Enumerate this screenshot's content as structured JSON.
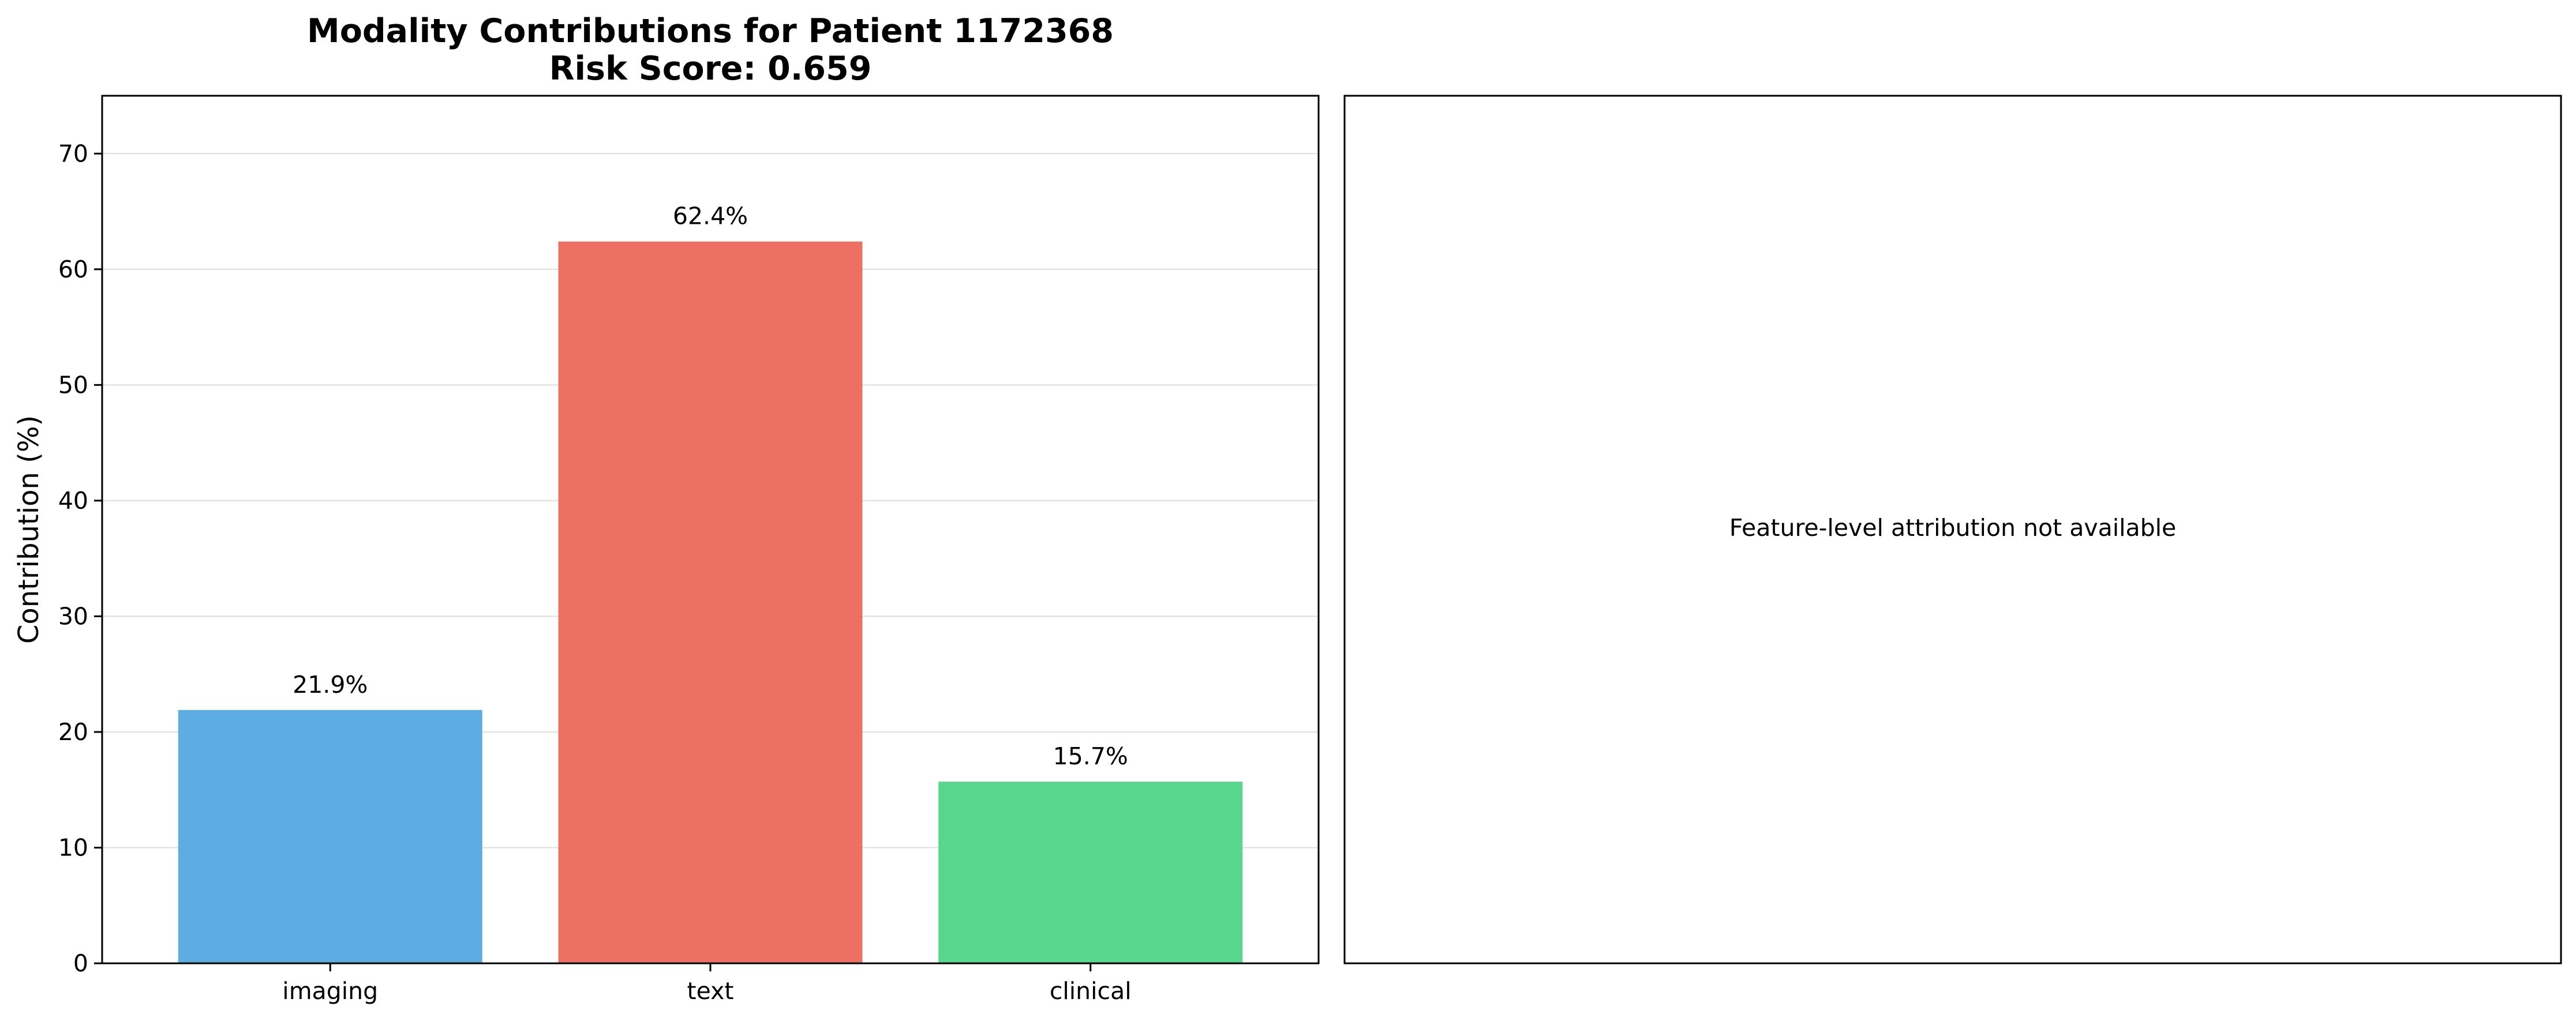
{
  "chart_data": [
    {
      "type": "bar",
      "title": "Modality Contributions for Patient 1172368",
      "subtitle": "Risk Score: 0.659",
      "xlabel": "",
      "ylabel": "Contribution (%)",
      "categories": [
        "imaging",
        "text",
        "clinical"
      ],
      "values": [
        21.9,
        62.4,
        15.7
      ],
      "data_labels": [
        "21.9%",
        "62.4%",
        "15.7%"
      ],
      "colors": [
        "#5dade2",
        "#ec7063",
        "#58d68d"
      ],
      "ylim": [
        0,
        75
      ],
      "yticks": [
        0,
        10,
        20,
        30,
        40,
        50,
        60,
        70
      ],
      "grid": "horizontal"
    },
    {
      "type": "table",
      "message": "Feature-level attribution not available"
    }
  ]
}
